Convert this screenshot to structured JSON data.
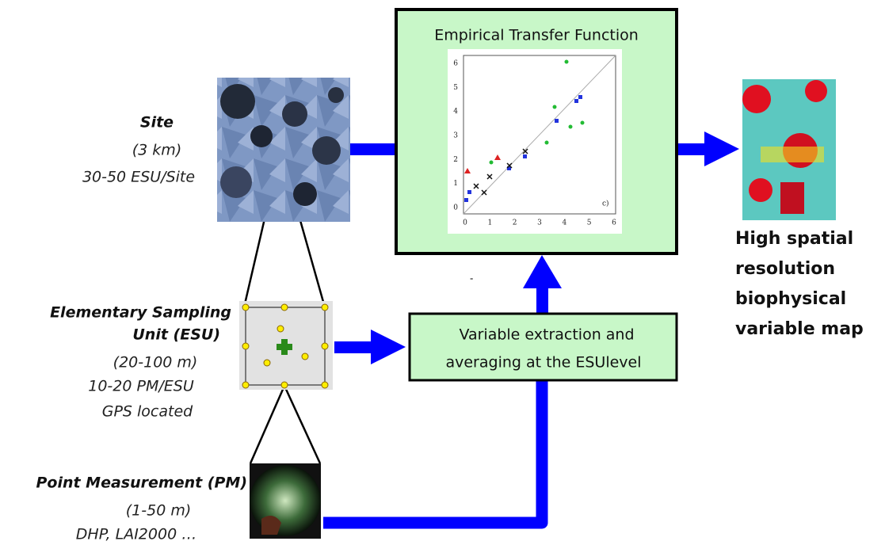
{
  "site": {
    "title": "Site",
    "size": "(3 km)",
    "density": "30-50 ESU/Site"
  },
  "esu": {
    "title_line1": "Elementary   Sampling",
    "title_line2": "Unit (ESU)",
    "size": "(20-100 m)",
    "density": "10-20 PM/ESU",
    "location": "GPS located"
  },
  "pm": {
    "title": "Point Measurement (PM)",
    "size": "(1-50 m)",
    "instruments": "DHP, LAI2000 …"
  },
  "transfer_box": {
    "title": "Empirical Transfer Function",
    "plot_label": "c)",
    "x_ticks": [
      "0",
      "1",
      "2",
      "3",
      "4",
      "5",
      "6"
    ],
    "y_ticks": [
      "0",
      "1",
      "2",
      "3",
      "4",
      "5",
      "6"
    ]
  },
  "extraction_box": {
    "line1": "Variable  extraction  and",
    "line2": "averaging at the ESUlevel"
  },
  "stray_mark": "-",
  "output": {
    "lines": [
      "High spatial",
      "resolution",
      "biophysical",
      "variable map"
    ]
  }
}
